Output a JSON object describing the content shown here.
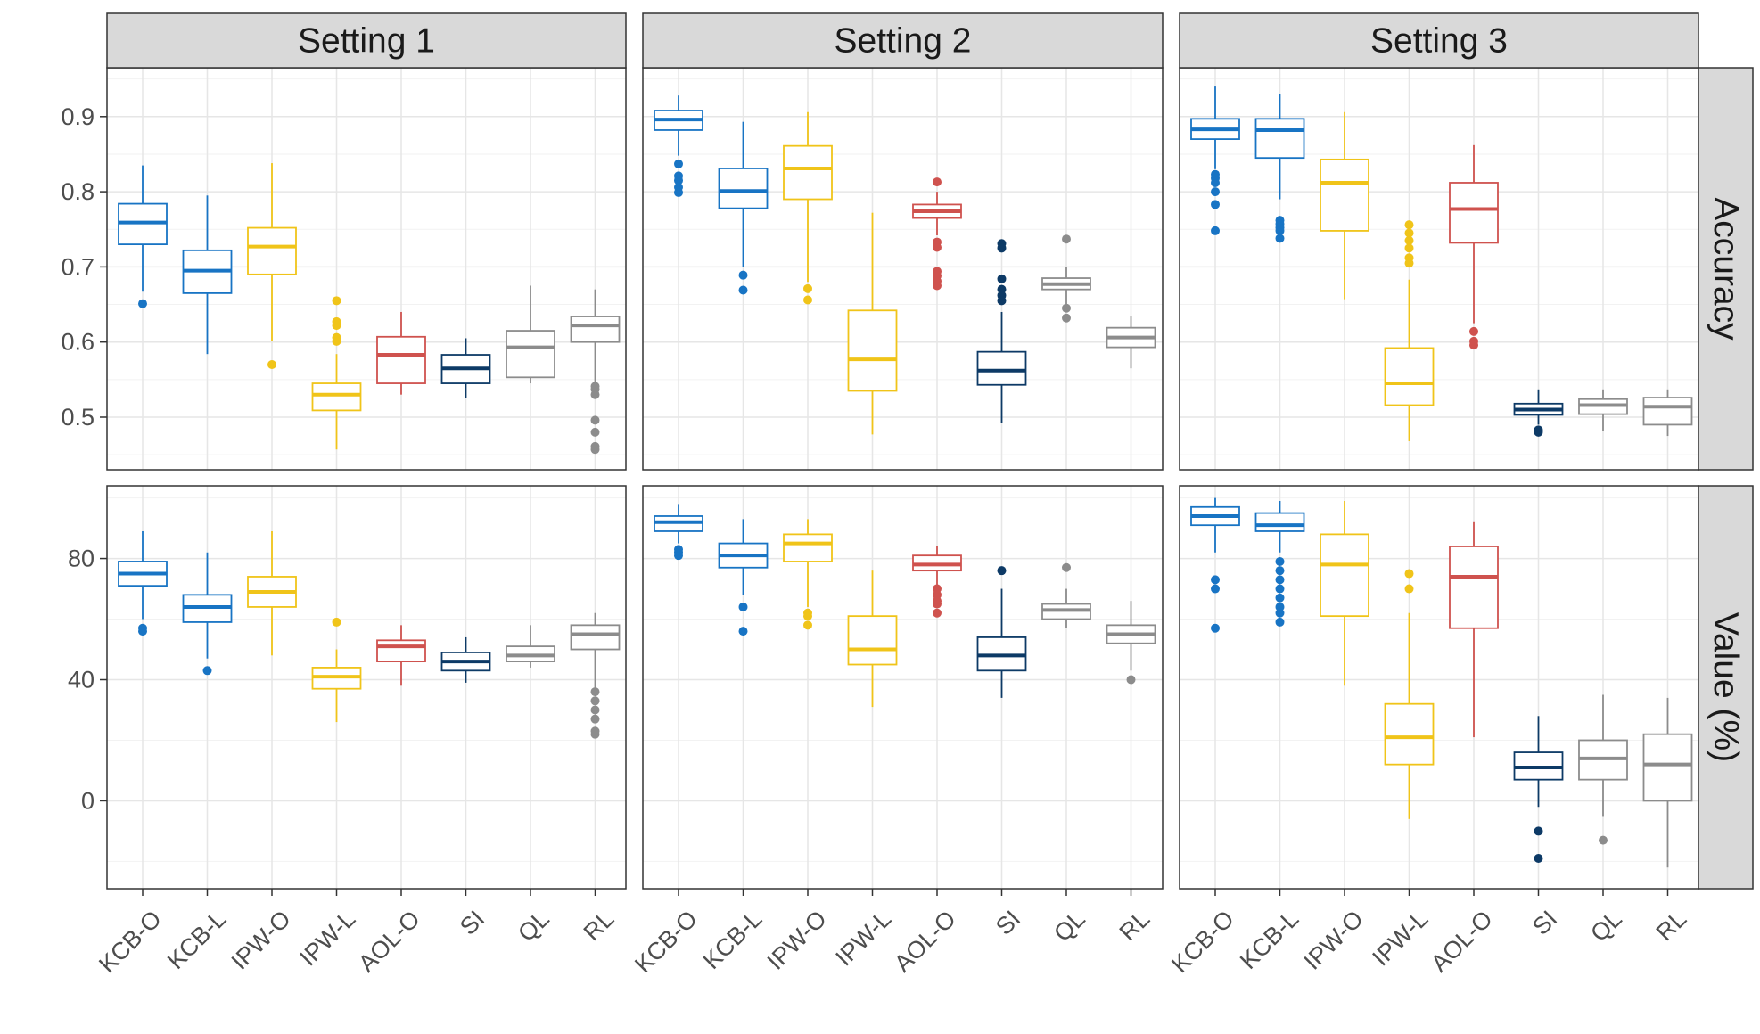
{
  "chart_data": {
    "type": "boxplot",
    "layout": "facet_grid",
    "categories": [
      "KCB-O",
      "KCB-L",
      "IPW-O",
      "IPW-L",
      "AOL-O",
      "SI",
      "QL",
      "RL"
    ],
    "category_colors": {
      "KCB-O": "#1874c4",
      "KCB-L": "#1874c4",
      "IPW-O": "#f0c419",
      "IPW-L": "#f0c419",
      "AOL-O": "#cf524e",
      "SI": "#0d3a66",
      "QL": "#8c8c8c",
      "RL": "#8c8c8c"
    },
    "columns": [
      "Setting 1",
      "Setting 2",
      "Setting 3"
    ],
    "rows": [
      {
        "label": "Accuracy",
        "ylim": [
          0.43,
          0.965
        ],
        "yticks": [
          0.5,
          0.6,
          0.7,
          0.8,
          0.9
        ],
        "tick_labels": [
          "0.5",
          "0.6",
          "0.7",
          "0.8",
          "0.9"
        ]
      },
      {
        "label": "Value (%)",
        "ylim": [
          -29,
          104
        ],
        "yticks": [
          0,
          40,
          80
        ],
        "tick_labels": [
          "0",
          "40",
          "80"
        ]
      }
    ],
    "panels": [
      {
        "row": 0,
        "col": 0,
        "boxes": [
          {
            "cat": "KCB-O",
            "lo": 0.667,
            "q1": 0.73,
            "med": 0.759,
            "q3": 0.784,
            "hi": 0.835,
            "out": [
              0.651
            ]
          },
          {
            "cat": "KCB-L",
            "lo": 0.584,
            "q1": 0.665,
            "med": 0.695,
            "q3": 0.722,
            "hi": 0.795,
            "out": []
          },
          {
            "cat": "IPW-O",
            "lo": 0.602,
            "q1": 0.69,
            "med": 0.727,
            "q3": 0.752,
            "hi": 0.838,
            "out": [
              0.57
            ]
          },
          {
            "cat": "IPW-L",
            "lo": 0.457,
            "q1": 0.509,
            "med": 0.53,
            "q3": 0.545,
            "hi": 0.584,
            "out": [
              0.655,
              0.627,
              0.622,
              0.606,
              0.601
            ]
          },
          {
            "cat": "AOL-O",
            "lo": 0.53,
            "q1": 0.545,
            "med": 0.583,
            "q3": 0.607,
            "hi": 0.64,
            "out": []
          },
          {
            "cat": "SI",
            "lo": 0.526,
            "q1": 0.545,
            "med": 0.565,
            "q3": 0.583,
            "hi": 0.605,
            "out": []
          },
          {
            "cat": "QL",
            "lo": 0.545,
            "q1": 0.553,
            "med": 0.593,
            "q3": 0.615,
            "hi": 0.675,
            "out": []
          },
          {
            "cat": "RL",
            "lo": 0.545,
            "q1": 0.6,
            "med": 0.622,
            "q3": 0.634,
            "hi": 0.67,
            "out": [
              0.541,
              0.537,
              0.53,
              0.496,
              0.48,
              0.461,
              0.457
            ]
          }
        ]
      },
      {
        "row": 0,
        "col": 1,
        "boxes": [
          {
            "cat": "KCB-O",
            "lo": 0.848,
            "q1": 0.882,
            "med": 0.896,
            "q3": 0.908,
            "hi": 0.928,
            "out": [
              0.837,
              0.821,
              0.815,
              0.806,
              0.799
            ]
          },
          {
            "cat": "KCB-L",
            "lo": 0.7,
            "q1": 0.778,
            "med": 0.801,
            "q3": 0.831,
            "hi": 0.893,
            "out": [
              0.689,
              0.669
            ]
          },
          {
            "cat": "IPW-O",
            "lo": 0.68,
            "q1": 0.79,
            "med": 0.831,
            "q3": 0.861,
            "hi": 0.906,
            "out": [
              0.671,
              0.656
            ]
          },
          {
            "cat": "IPW-L",
            "lo": 0.477,
            "q1": 0.535,
            "med": 0.577,
            "q3": 0.642,
            "hi": 0.772,
            "out": []
          },
          {
            "cat": "AOL-O",
            "lo": 0.742,
            "q1": 0.765,
            "med": 0.774,
            "q3": 0.783,
            "hi": 0.8,
            "out": [
              0.813,
              0.733,
              0.726,
              0.694,
              0.688,
              0.681,
              0.675
            ]
          },
          {
            "cat": "SI",
            "lo": 0.492,
            "q1": 0.543,
            "med": 0.562,
            "q3": 0.587,
            "hi": 0.64,
            "out": [
              0.731,
              0.725,
              0.684,
              0.67,
              0.662,
              0.655
            ]
          },
          {
            "cat": "QL",
            "lo": 0.65,
            "q1": 0.67,
            "med": 0.677,
            "q3": 0.685,
            "hi": 0.7,
            "out": [
              0.737,
              0.645,
              0.632
            ]
          },
          {
            "cat": "RL",
            "lo": 0.565,
            "q1": 0.593,
            "med": 0.606,
            "q3": 0.619,
            "hi": 0.634,
            "out": []
          }
        ]
      },
      {
        "row": 0,
        "col": 2,
        "boxes": [
          {
            "cat": "KCB-O",
            "lo": 0.83,
            "q1": 0.87,
            "med": 0.883,
            "q3": 0.897,
            "hi": 0.94,
            "out": [
              0.823,
              0.818,
              0.812,
              0.8,
              0.783,
              0.748
            ]
          },
          {
            "cat": "KCB-L",
            "lo": 0.79,
            "q1": 0.845,
            "med": 0.882,
            "q3": 0.897,
            "hi": 0.93,
            "out": [
              0.762,
              0.757,
              0.752,
              0.748,
              0.738
            ]
          },
          {
            "cat": "IPW-O",
            "lo": 0.657,
            "q1": 0.748,
            "med": 0.812,
            "q3": 0.843,
            "hi": 0.906,
            "out": []
          },
          {
            "cat": "IPW-L",
            "lo": 0.468,
            "q1": 0.516,
            "med": 0.545,
            "q3": 0.592,
            "hi": 0.683,
            "out": [
              0.756,
              0.745,
              0.735,
              0.725,
              0.712,
              0.705
            ]
          },
          {
            "cat": "AOL-O",
            "lo": 0.625,
            "q1": 0.732,
            "med": 0.777,
            "q3": 0.812,
            "hi": 0.862,
            "out": [
              0.614,
              0.601,
              0.596
            ]
          },
          {
            "cat": "SI",
            "lo": 0.49,
            "q1": 0.503,
            "med": 0.51,
            "q3": 0.518,
            "hi": 0.537,
            "out": [
              0.483,
              0.48
            ]
          },
          {
            "cat": "QL",
            "lo": 0.482,
            "q1": 0.504,
            "med": 0.516,
            "q3": 0.524,
            "hi": 0.537,
            "out": []
          },
          {
            "cat": "RL",
            "lo": 0.475,
            "q1": 0.49,
            "med": 0.514,
            "q3": 0.526,
            "hi": 0.537,
            "out": []
          }
        ]
      },
      {
        "row": 1,
        "col": 0,
        "boxes": [
          {
            "cat": "KCB-O",
            "lo": 60,
            "q1": 71,
            "med": 75,
            "q3": 79,
            "hi": 89,
            "out": [
              57,
              56
            ]
          },
          {
            "cat": "KCB-L",
            "lo": 47,
            "q1": 59,
            "med": 64,
            "q3": 68,
            "hi": 82,
            "out": [
              43
            ]
          },
          {
            "cat": "IPW-O",
            "lo": 48,
            "q1": 64,
            "med": 69,
            "q3": 74,
            "hi": 89,
            "out": []
          },
          {
            "cat": "IPW-L",
            "lo": 26,
            "q1": 37,
            "med": 41,
            "q3": 44,
            "hi": 50,
            "out": [
              59
            ]
          },
          {
            "cat": "AOL-O",
            "lo": 38,
            "q1": 46,
            "med": 51,
            "q3": 53,
            "hi": 58,
            "out": []
          },
          {
            "cat": "SI",
            "lo": 39,
            "q1": 43,
            "med": 46,
            "q3": 49,
            "hi": 54,
            "out": []
          },
          {
            "cat": "QL",
            "lo": 44,
            "q1": 46,
            "med": 48,
            "q3": 51,
            "hi": 58,
            "out": []
          },
          {
            "cat": "RL",
            "lo": 37,
            "q1": 50,
            "med": 55,
            "q3": 58,
            "hi": 62,
            "out": [
              36,
              33,
              30,
              27,
              23,
              22
            ]
          }
        ]
      },
      {
        "row": 1,
        "col": 1,
        "boxes": [
          {
            "cat": "KCB-O",
            "lo": 85,
            "q1": 89,
            "med": 92,
            "q3": 94,
            "hi": 98,
            "out": [
              83,
              82,
              81
            ]
          },
          {
            "cat": "KCB-L",
            "lo": 68,
            "q1": 77,
            "med": 81,
            "q3": 85,
            "hi": 93,
            "out": [
              64,
              56
            ]
          },
          {
            "cat": "IPW-O",
            "lo": 64,
            "q1": 79,
            "med": 85,
            "q3": 88,
            "hi": 93,
            "out": [
              62,
              61,
              58
            ]
          },
          {
            "cat": "IPW-L",
            "lo": 31,
            "q1": 45,
            "med": 50,
            "q3": 61,
            "hi": 76,
            "out": []
          },
          {
            "cat": "AOL-O",
            "lo": 71,
            "q1": 76,
            "med": 78,
            "q3": 81,
            "hi": 84,
            "out": [
              70,
              68,
              66,
              65,
              62
            ]
          },
          {
            "cat": "SI",
            "lo": 34,
            "q1": 43,
            "med": 48,
            "q3": 54,
            "hi": 70,
            "out": [
              76
            ]
          },
          {
            "cat": "QL",
            "lo": 57,
            "q1": 60,
            "med": 63,
            "q3": 65,
            "hi": 70,
            "out": [
              77
            ]
          },
          {
            "cat": "RL",
            "lo": 43,
            "q1": 52,
            "med": 55,
            "q3": 58,
            "hi": 66,
            "out": [
              40
            ]
          }
        ]
      },
      {
        "row": 1,
        "col": 2,
        "boxes": [
          {
            "cat": "KCB-O",
            "lo": 82,
            "q1": 91,
            "med": 94,
            "q3": 97,
            "hi": 100,
            "out": [
              73,
              70,
              57
            ]
          },
          {
            "cat": "KCB-L",
            "lo": 82,
            "q1": 89,
            "med": 91,
            "q3": 95,
            "hi": 99,
            "out": [
              79,
              76,
              73,
              70,
              67,
              64,
              62,
              59
            ]
          },
          {
            "cat": "IPW-O",
            "lo": 38,
            "q1": 61,
            "med": 78,
            "q3": 88,
            "hi": 99,
            "out": []
          },
          {
            "cat": "IPW-L",
            "lo": -6,
            "q1": 12,
            "med": 21,
            "q3": 32,
            "hi": 62,
            "out": [
              75,
              70
            ]
          },
          {
            "cat": "AOL-O",
            "lo": 21,
            "q1": 57,
            "med": 74,
            "q3": 84,
            "hi": 92,
            "out": []
          },
          {
            "cat": "SI",
            "lo": -2,
            "q1": 7,
            "med": 11,
            "q3": 16,
            "hi": 28,
            "out": [
              -10,
              -19
            ]
          },
          {
            "cat": "QL",
            "lo": -5,
            "q1": 7,
            "med": 14,
            "q3": 20,
            "hi": 35,
            "out": [
              -13
            ]
          },
          {
            "cat": "RL",
            "lo": -22,
            "q1": 0,
            "med": 12,
            "q3": 22,
            "hi": 34,
            "out": []
          }
        ]
      }
    ]
  }
}
